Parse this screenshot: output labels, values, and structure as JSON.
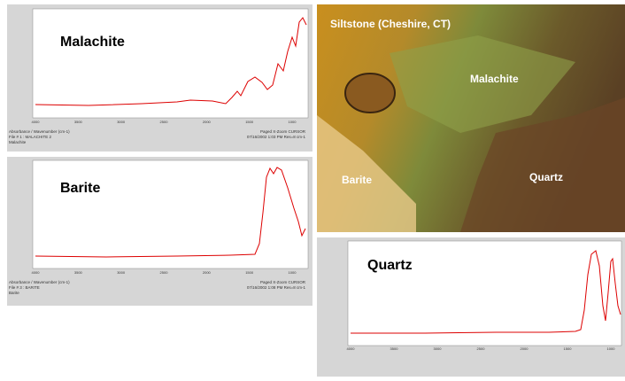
{
  "panels": [
    {
      "title": "Malachite",
      "xticks": [
        "4000",
        "3500",
        "3000",
        "2500",
        "2000",
        "1500",
        "1000"
      ],
      "footer_left": [
        "Absorbance / Wavenumber (cm-1)",
        "File # 1 : MALACHITE 2",
        "Malachite"
      ],
      "footer_right": [
        "Paged X-Zoom CURSOR",
        "07/16/2002 1:03 PM Res=8 cm-1"
      ]
    },
    {
      "title": "Barite",
      "xticks": [
        "4000",
        "3500",
        "3000",
        "2500",
        "2000",
        "1500",
        "1000"
      ],
      "footer_left": [
        "Absorbance / Wavenumber (cm-1)",
        "File # 3 : BARITE",
        "Barite"
      ],
      "footer_right": [
        "Paged X-Zoom CURSOR",
        "07/16/2002 1:08 PM Res=8 cm-1"
      ]
    },
    {
      "title": "Quartz",
      "xticks": [
        "4000",
        "3500",
        "3000",
        "2500",
        "2000",
        "1500",
        "1000"
      ]
    }
  ],
  "photo": {
    "caption": "Siltstone (Cheshire, CT)",
    "labels": [
      "Malachite",
      "Barite",
      "Quartz"
    ]
  }
}
